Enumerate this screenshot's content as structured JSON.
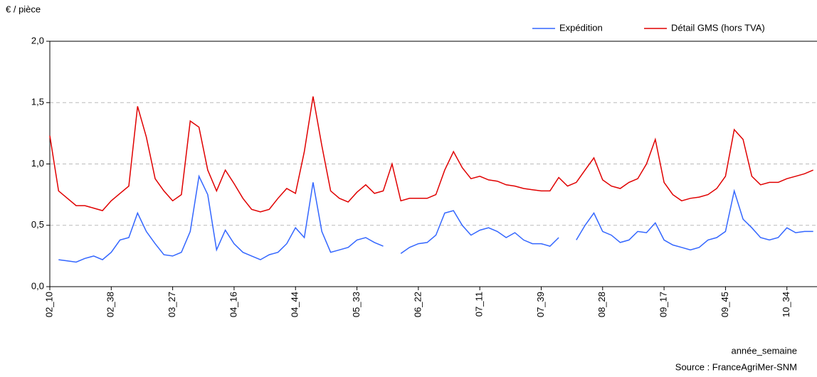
{
  "chart_data": {
    "type": "line",
    "y_label": "€ / pièce",
    "x_label": "année_semaine",
    "source": "Source : FranceAgriMer-SNM",
    "categories": [
      "02_10",
      null,
      null,
      null,
      null,
      null,
      null,
      "02_38",
      null,
      null,
      null,
      null,
      null,
      null,
      "03_27",
      null,
      null,
      null,
      null,
      null,
      null,
      "04_16",
      null,
      null,
      null,
      null,
      null,
      null,
      "04_44",
      null,
      null,
      null,
      null,
      null,
      null,
      "05_33",
      null,
      null,
      null,
      null,
      null,
      null,
      "06_22",
      null,
      null,
      null,
      null,
      null,
      null,
      "07_11",
      null,
      null,
      null,
      null,
      null,
      null,
      "07_39",
      null,
      null,
      null,
      null,
      null,
      null,
      "08_28",
      null,
      null,
      null,
      null,
      null,
      null,
      "09_17",
      null,
      null,
      null,
      null,
      null,
      null,
      "09_45",
      null,
      null,
      null,
      null,
      null,
      null,
      "10_34",
      null,
      null,
      null
    ],
    "series": [
      {
        "name": "Expédition",
        "color": "#3366ff",
        "values": [
          null,
          0.22,
          0.21,
          0.2,
          0.23,
          0.25,
          0.22,
          0.28,
          0.38,
          0.4,
          0.6,
          0.45,
          0.35,
          0.26,
          0.25,
          0.28,
          0.45,
          0.9,
          0.75,
          0.3,
          0.46,
          0.35,
          0.28,
          0.25,
          0.22,
          0.26,
          0.28,
          0.35,
          0.48,
          0.4,
          0.85,
          0.45,
          0.28,
          0.3,
          0.32,
          0.38,
          0.4,
          0.36,
          0.33,
          null,
          0.27,
          0.32,
          0.35,
          0.36,
          0.42,
          0.6,
          0.62,
          0.5,
          0.42,
          0.46,
          0.48,
          0.45,
          0.4,
          0.44,
          0.38,
          0.35,
          0.35,
          0.33,
          0.4,
          null,
          0.38,
          0.5,
          0.6,
          0.45,
          0.42,
          0.36,
          0.38,
          0.45,
          0.44,
          0.52,
          0.38,
          0.34,
          0.32,
          0.3,
          0.32,
          0.38,
          0.4,
          0.45,
          0.78,
          0.55,
          0.48,
          0.4,
          0.38,
          0.4,
          0.48,
          0.44,
          0.45,
          0.45
        ]
      },
      {
        "name": "Détail GMS (hors TVA)",
        "color": "#e00000",
        "values": [
          1.23,
          0.78,
          0.72,
          0.66,
          0.66,
          0.64,
          0.62,
          0.7,
          0.76,
          0.82,
          1.47,
          1.22,
          0.88,
          0.78,
          0.7,
          0.75,
          1.35,
          1.3,
          0.95,
          0.78,
          0.95,
          0.84,
          0.72,
          0.63,
          0.61,
          0.63,
          0.72,
          0.8,
          0.76,
          1.1,
          1.55,
          1.15,
          0.78,
          0.72,
          0.69,
          0.77,
          0.83,
          0.76,
          0.78,
          1.0,
          0.7,
          0.72,
          0.72,
          0.72,
          0.75,
          0.95,
          1.1,
          0.97,
          0.88,
          0.9,
          0.87,
          0.86,
          0.83,
          0.82,
          0.8,
          0.79,
          0.78,
          0.78,
          0.89,
          0.82,
          0.85,
          0.95,
          1.05,
          0.87,
          0.82,
          0.8,
          0.85,
          0.88,
          1.0,
          1.2,
          0.85,
          0.75,
          0.7,
          0.72,
          0.73,
          0.75,
          0.8,
          0.9,
          1.28,
          1.2,
          0.9,
          0.83,
          0.85,
          0.85,
          0.88,
          0.9,
          0.92,
          0.95
        ]
      }
    ],
    "ylim": [
      0,
      2
    ],
    "yticks": [
      {
        "value": 0,
        "label": "0,0"
      },
      {
        "value": 0.5,
        "label": "0,5"
      },
      {
        "value": 1,
        "label": "1,0"
      },
      {
        "value": 1.5,
        "label": "1,5"
      },
      {
        "value": 2,
        "label": "2,0"
      }
    ],
    "grid": true,
    "legend": "top-right"
  }
}
